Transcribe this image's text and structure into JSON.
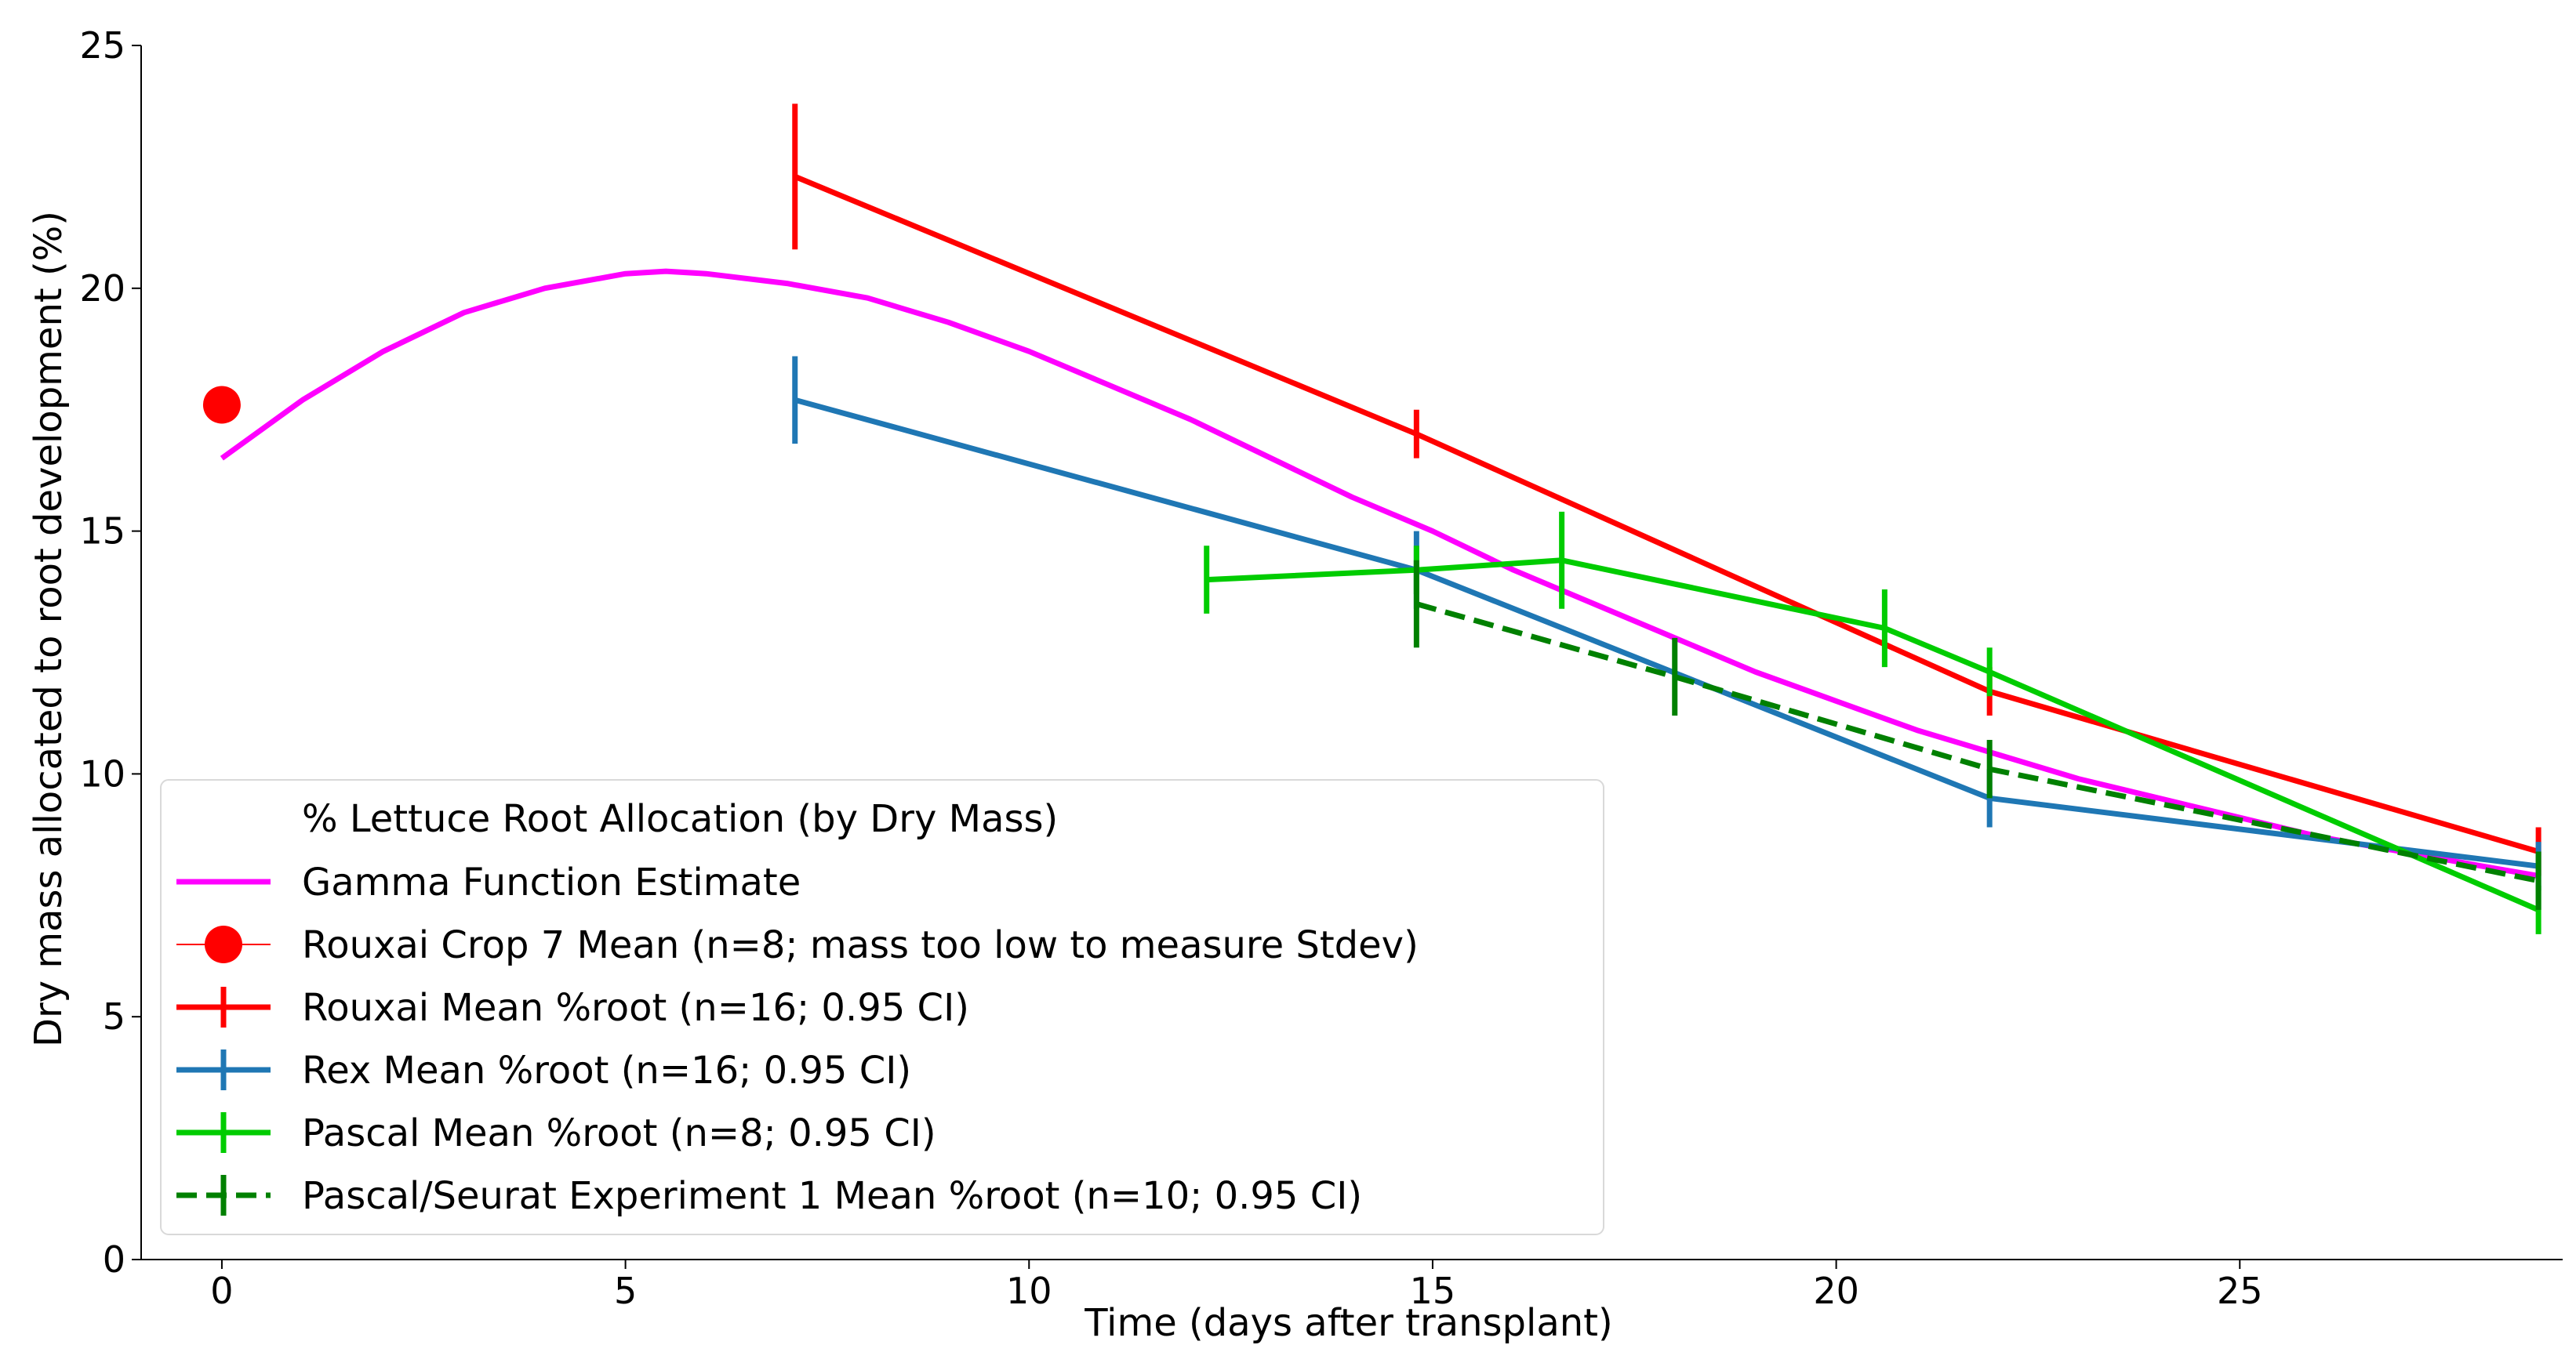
{
  "chart_data": {
    "type": "line",
    "title": "",
    "xlabel": "Time (days after transplant)",
    "ylabel": "Dry mass allocated to root development (%)",
    "xlim": [
      -1,
      29
    ],
    "ylim": [
      0,
      25
    ],
    "xticks": [
      0,
      5,
      10,
      15,
      20,
      25
    ],
    "yticks": [
      0,
      5,
      10,
      15,
      20,
      25
    ],
    "grid": false,
    "legend_position": "lower-left",
    "legend_title": "% Lettuce Root Allocation (by Dry Mass)",
    "series": [
      {
        "name": "Gamma Function Estimate",
        "kind": "curve",
        "color": "#ff00ff",
        "x": [
          0,
          1,
          2,
          3,
          4,
          5,
          5.5,
          6,
          7,
          8,
          9,
          10,
          11,
          12,
          13,
          14,
          15,
          16,
          17,
          18,
          19,
          20,
          21,
          22,
          23,
          24,
          25,
          26,
          27,
          28,
          28.7
        ],
        "values": [
          16.5,
          17.7,
          18.7,
          19.5,
          20.0,
          20.3,
          20.35,
          20.3,
          20.1,
          19.8,
          19.3,
          18.7,
          18.0,
          17.3,
          16.5,
          15.7,
          15.0,
          14.2,
          13.5,
          12.8,
          12.1,
          11.5,
          10.9,
          10.4,
          9.9,
          9.5,
          9.1,
          8.7,
          8.4,
          8.1,
          7.9
        ]
      },
      {
        "name": "Rouxai Crop 7 Mean (n=8; mass too low to measure Stdev)",
        "kind": "point",
        "color": "#ff0000",
        "x": [
          0
        ],
        "values": [
          17.6
        ]
      },
      {
        "name": "Rouxai Mean %root (n=16; 0.95 CI)",
        "kind": "errorline",
        "color": "#ff0000",
        "dashed": false,
        "x": [
          7.1,
          14.8,
          21.9,
          28.7
        ],
        "values": [
          22.3,
          17.0,
          11.7,
          8.4
        ],
        "err": [
          1.5,
          0.5,
          0.5,
          0.5
        ]
      },
      {
        "name": "Rex Mean %root (n=16; 0.95 CI)",
        "kind": "errorline",
        "color": "#1f77b4",
        "dashed": false,
        "x": [
          7.1,
          14.8,
          21.9,
          28.7
        ],
        "values": [
          17.7,
          14.2,
          9.5,
          8.1
        ],
        "err": [
          0.9,
          0.8,
          0.6,
          0.5
        ]
      },
      {
        "name": "Pascal Mean %root (n=8; 0.95 CI)",
        "kind": "errorline",
        "color": "#00cc00",
        "dashed": false,
        "x": [
          12.2,
          14.8,
          16.6,
          20.6,
          21.9,
          28.7
        ],
        "values": [
          14.0,
          14.2,
          14.4,
          13.0,
          12.1,
          7.2
        ],
        "err": [
          0.7,
          0.5,
          1.0,
          0.8,
          0.5,
          0.5
        ]
      },
      {
        "name": "Pascal/Seurat Experiment 1 Mean %root (n=10; 0.95 CI)",
        "kind": "errorline",
        "color": "#008000",
        "dashed": true,
        "x": [
          14.8,
          18.0,
          21.9,
          28.7
        ],
        "values": [
          13.5,
          12.0,
          10.1,
          7.8
        ],
        "err": [
          0.9,
          0.8,
          0.6,
          0.6
        ]
      }
    ]
  }
}
